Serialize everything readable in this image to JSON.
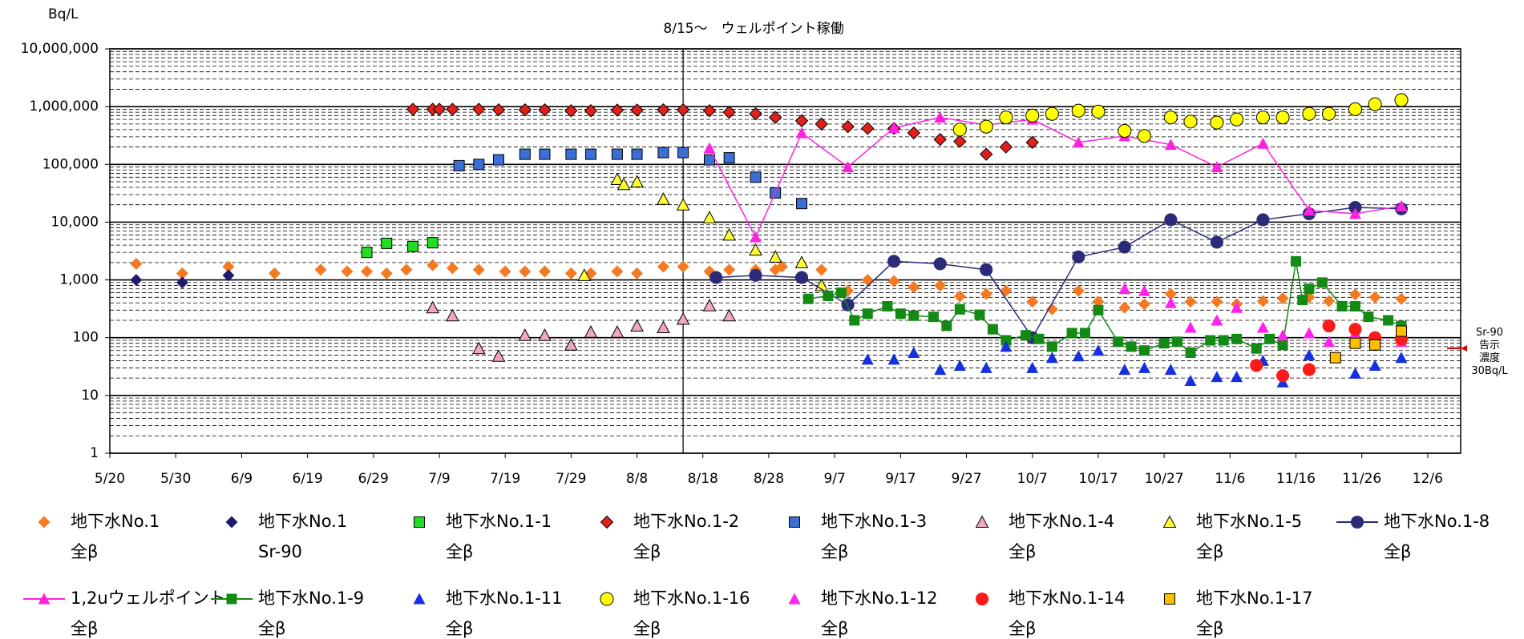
{
  "chart_data": {
    "type": "scatter",
    "title": "8/15～　ウェルポイント稼働",
    "y_label": "Bq/L",
    "annotation": "Sr-90\n告示\n濃度\n30Bq/L",
    "log_y": true,
    "grid": true,
    "xlim": [
      "5/20",
      "12/11"
    ],
    "xticks": [
      "5/20",
      "5/30",
      "6/9",
      "6/19",
      "6/29",
      "7/9",
      "7/19",
      "7/29",
      "8/8",
      "8/18",
      "8/28",
      "9/7",
      "9/17",
      "9/27",
      "10/7",
      "10/17",
      "10/27",
      "11/6",
      "11/16",
      "11/26",
      "12/6"
    ],
    "event_x": "8/15",
    "ylim": [
      1,
      10000000
    ],
    "yticks": [
      1,
      10,
      100,
      {
        "value": 1000,
        "label": "1,000"
      },
      {
        "value": 10000,
        "label": "10,000"
      },
      {
        "value": 100000,
        "label": "100,000"
      },
      {
        "value": 1000000,
        "label": "1,000,000"
      },
      {
        "value": 10000000,
        "label": "10,000,000"
      }
    ],
    "series": [
      {
        "name": "地下水No.1\n全β",
        "marker": "diamond",
        "color": "#f47920",
        "edge": "none",
        "line": false,
        "x": [
          "5/24",
          "5/31",
          "6/7",
          "6/14",
          "6/21",
          "6/25",
          "6/28",
          "7/1",
          "7/4",
          "7/8",
          "7/11",
          "7/15",
          "7/19",
          "7/22",
          "7/25",
          "7/29",
          "8/1",
          "8/5",
          "8/8",
          "8/12",
          "8/15",
          "8/19",
          "8/22",
          "8/26",
          "8/29",
          "8/30",
          "9/5",
          "9/9",
          "9/12",
          "9/16",
          "9/19",
          "9/23",
          "9/26",
          "9/30",
          "10/3",
          "10/7",
          "10/10",
          "10/14",
          "10/17",
          "10/21",
          "10/24",
          "10/28",
          "10/31",
          "11/4",
          "11/7",
          "11/11",
          "11/14",
          "11/18",
          "11/21",
          "11/25",
          "11/28",
          "12/2"
        ],
        "values": [
          1900,
          1300,
          1700,
          1300,
          1500,
          1400,
          1400,
          1300,
          1500,
          1800,
          1600,
          1500,
          1400,
          1400,
          1400,
          1300,
          1300,
          1400,
          1300,
          1700,
          1700,
          1400,
          1500,
          1500,
          1500,
          1700,
          1500,
          650,
          1000,
          950,
          750,
          800,
          520,
          570,
          650,
          420,
          310,
          650,
          420,
          330,
          380,
          570,
          420,
          420,
          380,
          430,
          480,
          500,
          430,
          560,
          500,
          470
        ]
      },
      {
        "name": "地下水No.1\nSr-90",
        "marker": "diamond",
        "color": "#1f1a6e",
        "edge": "none",
        "line": false,
        "x": [
          "5/24",
          "5/31",
          "6/7"
        ],
        "values": [
          1000,
          900,
          1200
        ]
      },
      {
        "name": "地下水No.1-1\n全β",
        "marker": "square",
        "color": "#22dd22",
        "edge": "#000",
        "line": false,
        "x": [
          "6/28",
          "7/1",
          "7/5",
          "7/8"
        ],
        "values": [
          3000,
          4300,
          3800,
          4400
        ]
      },
      {
        "name": "地下水No.1-2\n全β",
        "marker": "diamond",
        "color": "#e0201b",
        "edge": "#000",
        "line": false,
        "x": [
          "7/5",
          "7/8",
          "7/9",
          "7/11",
          "7/15",
          "7/18",
          "7/22",
          "7/25",
          "7/29",
          "8/1",
          "8/5",
          "8/8",
          "8/12",
          "8/15",
          "8/19",
          "8/22",
          "8/26",
          "8/29",
          "9/2",
          "9/5",
          "9/9",
          "9/12",
          "9/16",
          "9/19",
          "9/23",
          "9/26",
          "9/30",
          "10/3",
          "10/7"
        ],
        "values": [
          900000,
          900000,
          900000,
          900000,
          900000,
          880000,
          880000,
          880000,
          850000,
          850000,
          870000,
          870000,
          880000,
          880000,
          850000,
          800000,
          750000,
          650000,
          570000,
          500000,
          450000,
          420000,
          420000,
          350000,
          270000,
          250000,
          150000,
          200000,
          240000
        ]
      },
      {
        "name": "地下水No.1-3\n全β",
        "marker": "square",
        "color": "#3b6fd6",
        "edge": "#000",
        "line": false,
        "x": [
          "7/12",
          "7/15",
          "7/18",
          "7/22",
          "7/25",
          "7/29",
          "8/1",
          "8/5",
          "8/8",
          "8/12",
          "8/15",
          "8/19",
          "8/22",
          "8/26",
          "8/29",
          "9/2"
        ],
        "values": [
          95000,
          100000,
          120000,
          150000,
          150000,
          150000,
          150000,
          150000,
          150000,
          160000,
          160000,
          120000,
          130000,
          60000,
          32000,
          21000
        ]
      },
      {
        "name": "地下水No.1-4\n全β",
        "marker": "triangle",
        "color": "#f2a6c4",
        "edge": "#000",
        "line": false,
        "x": [
          "7/8",
          "7/11",
          "7/15",
          "7/18",
          "7/22",
          "7/25",
          "7/29",
          "8/1",
          "8/5",
          "8/8",
          "8/12",
          "8/15",
          "8/19",
          "8/22"
        ],
        "values": [
          330,
          240,
          65,
          48,
          110,
          110,
          75,
          125,
          125,
          160,
          150,
          210,
          360,
          240
        ]
      },
      {
        "name": "地下水No.1-5\n全β",
        "marker": "triangle",
        "color": "#ffff33",
        "edge": "#000",
        "line": false,
        "x": [
          "7/31",
          "8/5",
          "8/6",
          "8/8",
          "8/12",
          "8/15",
          "8/19",
          "8/22",
          "8/26",
          "8/29",
          "9/2",
          "9/5"
        ],
        "values": [
          1200,
          55000,
          45000,
          50000,
          25000,
          20000,
          12000,
          6000,
          3300,
          2500,
          2000,
          800
        ]
      },
      {
        "name": "地下水No.1-8\n全β",
        "marker": "circle",
        "color": "#2b2b7a",
        "edge": "none",
        "line": true,
        "x": [
          "8/20",
          "8/26",
          "9/2",
          "9/9",
          "9/16",
          "9/23",
          "9/30",
          "10/7",
          "10/14",
          "10/21",
          "10/28",
          "11/4",
          "11/11",
          "11/18",
          "11/25",
          "12/2"
        ],
        "values": [
          1100,
          1200,
          1100,
          370,
          2100,
          1900,
          1500,
          100,
          2500,
          3700,
          11000,
          4500,
          11000,
          14000,
          18000,
          17000
        ]
      },
      {
        "name": "1,2uウェルポイント\n全β",
        "marker": "triangle",
        "color": "#ff22dd",
        "edge": "none",
        "line": true,
        "x": [
          "8/19",
          "8/26",
          "9/2",
          "9/9",
          "9/16",
          "9/23",
          "9/30",
          "10/7",
          "10/14",
          "10/21",
          "10/28",
          "11/4",
          "11/11",
          "11/18",
          "11/25",
          "12/2"
        ],
        "values": [
          190000,
          5500,
          350000,
          90000,
          430000,
          650000,
          480000,
          600000,
          240000,
          310000,
          220000,
          90000,
          230000,
          16000,
          14000,
          19000
        ]
      },
      {
        "name": "地下水No.1-9\n全β",
        "marker": "square",
        "color": "#138a13",
        "edge": "none",
        "line": true,
        "x": [
          "9/3",
          "9/6",
          "9/8",
          "9/10",
          "9/12",
          "9/15",
          "9/17",
          "9/19",
          "9/22",
          "9/24",
          "9/26",
          "9/29",
          "10/1",
          "10/3",
          "10/6",
          "10/8",
          "10/10",
          "10/13",
          "10/15",
          "10/17",
          "10/20",
          "10/22",
          "10/24",
          "10/27",
          "10/29",
          "10/31",
          "11/3",
          "11/5",
          "11/7",
          "11/10",
          "11/12",
          "11/14",
          "11/16",
          "11/17",
          "11/18",
          "11/20",
          "11/23",
          "11/25",
          "11/27",
          "11/30",
          "12/2"
        ],
        "values": [
          470,
          530,
          600,
          200,
          260,
          350,
          260,
          240,
          230,
          160,
          310,
          250,
          140,
          90,
          110,
          95,
          70,
          120,
          120,
          300,
          85,
          70,
          60,
          80,
          85,
          55,
          90,
          90,
          95,
          65,
          95,
          75,
          2100,
          450,
          700,
          900,
          350,
          350,
          230,
          200,
          160
        ]
      },
      {
        "name": "地下水No.1-11\n全β",
        "marker": "triangle",
        "color": "#1530e0",
        "edge": "none",
        "line": false,
        "x": [
          "9/12",
          "9/16",
          "9/19",
          "9/23",
          "9/26",
          "9/30",
          "10/3",
          "10/7",
          "10/10",
          "10/14",
          "10/17",
          "10/21",
          "10/24",
          "10/28",
          "10/31",
          "11/4",
          "11/7",
          "11/11",
          "11/14",
          "11/18",
          "11/25",
          "11/28",
          "12/2"
        ],
        "values": [
          42,
          42,
          55,
          28,
          33,
          30,
          70,
          30,
          45,
          48,
          60,
          28,
          30,
          28,
          18,
          21,
          21,
          40,
          17,
          50,
          24,
          33,
          45
        ]
      },
      {
        "name": "地下水No.1-16\n全β",
        "marker": "circle",
        "color": "#ffff00",
        "edge": "#000",
        "line": false,
        "x": [
          "9/26",
          "9/30",
          "10/3",
          "10/7",
          "10/10",
          "10/14",
          "10/17",
          "10/21",
          "10/24",
          "10/28",
          "10/31",
          "11/4",
          "11/7",
          "11/11",
          "11/14",
          "11/18",
          "11/21",
          "11/25",
          "11/28",
          "12/2"
        ],
        "values": [
          400000,
          450000,
          650000,
          700000,
          750000,
          850000,
          820000,
          380000,
          310000,
          650000,
          550000,
          530000,
          600000,
          650000,
          650000,
          750000,
          750000,
          900000,
          1100000,
          1300000
        ]
      },
      {
        "name": "地下水No.1-12\n全β",
        "marker": "triangle",
        "color": "#ff22ee",
        "edge": "none",
        "line": false,
        "x": [
          "10/21",
          "10/24",
          "10/28",
          "10/31",
          "11/4",
          "11/7",
          "11/11",
          "11/14",
          "11/18",
          "11/21",
          "11/25",
          "11/28",
          "12/2"
        ],
        "values": [
          700,
          650,
          400,
          150,
          200,
          330,
          150,
          110,
          120,
          85,
          120,
          95,
          85
        ]
      },
      {
        "name": "地下水No.1-14\n全β",
        "marker": "circle",
        "color": "#ff1a1a",
        "edge": "none",
        "line": false,
        "x": [
          "11/10",
          "11/14",
          "11/18",
          "11/21",
          "11/25",
          "11/28",
          "12/2"
        ],
        "values": [
          33,
          22,
          28,
          160,
          140,
          100,
          95
        ]
      },
      {
        "name": "地下水No.1-17\n全β",
        "marker": "square",
        "color": "#ffbf00",
        "edge": "#000",
        "line": false,
        "x": [
          "11/22",
          "11/25",
          "11/28",
          "12/2"
        ],
        "values": [
          45,
          80,
          75,
          130
        ]
      }
    ]
  }
}
